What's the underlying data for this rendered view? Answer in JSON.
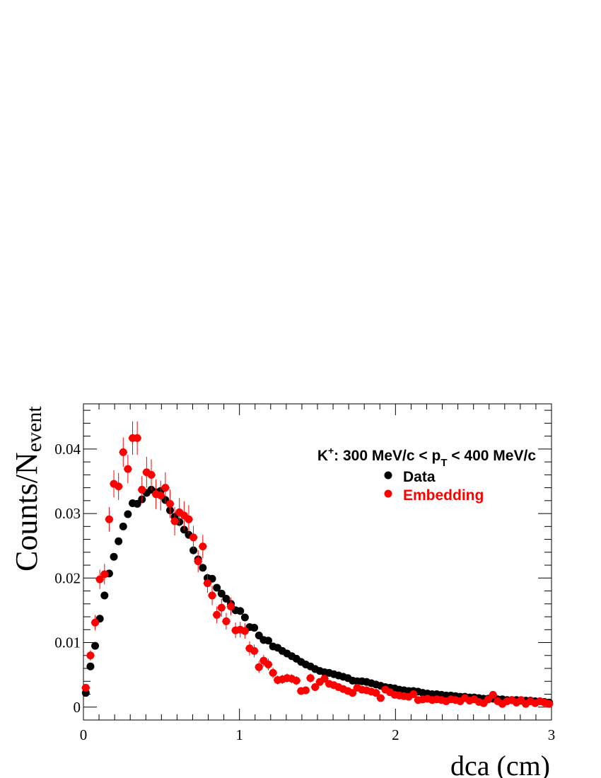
{
  "chart_data": {
    "type": "scatter",
    "xlabel": "dca (cm)",
    "ylabel": {
      "main": "Counts/N",
      "sub": "event"
    },
    "xlim": [
      0,
      3
    ],
    "ylim": [
      -0.002,
      0.047
    ],
    "x_ticks": [
      0,
      1,
      2,
      3
    ],
    "x_tick_labels": [
      "0",
      "1",
      "2",
      "3"
    ],
    "y_ticks": [
      0,
      0.01,
      0.02,
      0.03,
      0.04
    ],
    "y_tick_labels": [
      "0",
      "0.01",
      "0.02",
      "0.03",
      "0.04"
    ],
    "grid": false,
    "legend_position": "top-right",
    "annotation": {
      "particle": "K",
      "charge": "+",
      "text_a": ": 300 MeV/c < p",
      "subscript": "T",
      "text_b": " < 400 MeV/c"
    },
    "series": [
      {
        "name": "Data",
        "color": "#000000",
        "x": [
          0.015,
          0.045,
          0.075,
          0.105,
          0.135,
          0.165,
          0.195,
          0.225,
          0.255,
          0.285,
          0.315,
          0.345,
          0.375,
          0.405,
          0.435,
          0.465,
          0.495,
          0.525,
          0.555,
          0.585,
          0.615,
          0.645,
          0.675,
          0.705,
          0.735,
          0.765,
          0.795,
          0.825,
          0.855,
          0.885,
          0.915,
          0.945,
          0.975,
          1.005,
          1.035,
          1.065,
          1.095,
          1.125,
          1.155,
          1.185,
          1.215,
          1.245,
          1.275,
          1.305,
          1.335,
          1.365,
          1.395,
          1.425,
          1.455,
          1.485,
          1.515,
          1.545,
          1.575,
          1.605,
          1.635,
          1.665,
          1.695,
          1.725,
          1.755,
          1.785,
          1.815,
          1.845,
          1.875,
          1.905,
          1.935,
          1.965,
          1.995,
          2.025,
          2.055,
          2.085,
          2.115,
          2.145,
          2.175,
          2.205,
          2.235,
          2.265,
          2.295,
          2.325,
          2.355,
          2.385,
          2.415,
          2.445,
          2.475,
          2.505,
          2.535,
          2.565,
          2.595,
          2.625,
          2.655,
          2.685,
          2.715,
          2.745,
          2.775,
          2.805,
          2.835,
          2.865,
          2.895,
          2.925,
          2.955,
          2.985
        ],
        "y": [
          0.0022,
          0.0063,
          0.0095,
          0.0137,
          0.0173,
          0.0207,
          0.0233,
          0.0257,
          0.028,
          0.0299,
          0.0316,
          0.0315,
          0.0322,
          0.0332,
          0.0337,
          0.0333,
          0.0335,
          0.0321,
          0.0305,
          0.0295,
          0.0287,
          0.0275,
          0.0267,
          0.0243,
          0.0229,
          0.0216,
          0.02,
          0.0199,
          0.0185,
          0.0176,
          0.0168,
          0.016,
          0.015,
          0.0149,
          0.0139,
          0.0124,
          0.0123,
          0.0111,
          0.0104,
          0.0103,
          0.0094,
          0.0092,
          0.0087,
          0.0083,
          0.0079,
          0.0075,
          0.007,
          0.0066,
          0.0063,
          0.0059,
          0.0056,
          0.0054,
          0.0053,
          0.0051,
          0.0049,
          0.0047,
          0.0045,
          0.0041,
          0.004,
          0.004,
          0.0039,
          0.0037,
          0.0035,
          0.0033,
          0.0031,
          0.003,
          0.0029,
          0.0027,
          0.0026,
          0.0025,
          0.0025,
          0.0024,
          0.0022,
          0.0021,
          0.002,
          0.002,
          0.0019,
          0.0018,
          0.0018,
          0.0017,
          0.0016,
          0.0016,
          0.0015,
          0.0015,
          0.0014,
          0.0013,
          0.0013,
          0.0013,
          0.0012,
          0.0012,
          0.0011,
          0.0011,
          0.0011,
          0.001,
          0.001,
          0.001,
          0.0009,
          0.0009,
          0.0008,
          0.0007
        ]
      },
      {
        "name": "Embedding",
        "color": "#ff0000",
        "x": [
          0.015,
          0.045,
          0.075,
          0.105,
          0.135,
          0.165,
          0.195,
          0.225,
          0.255,
          0.285,
          0.315,
          0.345,
          0.375,
          0.405,
          0.435,
          0.465,
          0.495,
          0.525,
          0.555,
          0.585,
          0.615,
          0.645,
          0.675,
          0.705,
          0.735,
          0.765,
          0.795,
          0.825,
          0.855,
          0.885,
          0.915,
          0.945,
          0.975,
          1.005,
          1.035,
          1.065,
          1.095,
          1.125,
          1.155,
          1.185,
          1.215,
          1.245,
          1.275,
          1.305,
          1.335,
          1.365,
          1.395,
          1.425,
          1.455,
          1.485,
          1.515,
          1.545,
          1.575,
          1.605,
          1.635,
          1.665,
          1.695,
          1.725,
          1.755,
          1.785,
          1.815,
          1.845,
          1.875,
          1.905,
          1.935,
          1.965,
          1.995,
          2.025,
          2.055,
          2.085,
          2.115,
          2.145,
          2.175,
          2.205,
          2.235,
          2.265,
          2.295,
          2.325,
          2.355,
          2.385,
          2.415,
          2.445,
          2.475,
          2.505,
          2.535,
          2.565,
          2.595,
          2.625,
          2.655,
          2.685,
          2.715,
          2.745,
          2.775,
          2.805,
          2.835,
          2.865,
          2.895,
          2.925,
          2.955,
          2.985
        ],
        "y": [
          0.003,
          0.008,
          0.0131,
          0.0198,
          0.0206,
          0.0291,
          0.0346,
          0.0342,
          0.0395,
          0.0369,
          0.0417,
          0.0417,
          0.0337,
          0.0364,
          0.036,
          0.033,
          0.0328,
          0.034,
          0.0315,
          0.0288,
          0.0302,
          0.0297,
          0.0291,
          0.0263,
          0.0226,
          0.0249,
          0.0192,
          0.0173,
          0.0143,
          0.0154,
          0.0133,
          0.0156,
          0.0119,
          0.012,
          0.0118,
          0.0091,
          0.0087,
          0.0062,
          0.0072,
          0.0066,
          0.0053,
          0.0042,
          0.0043,
          0.0045,
          0.0044,
          0.0041,
          0.0025,
          0.0026,
          0.0045,
          0.0031,
          0.0039,
          0.0044,
          0.0036,
          0.0034,
          0.0031,
          0.0028,
          0.0025,
          0.0022,
          0.003,
          0.0027,
          0.0026,
          0.0024,
          0.0022,
          0.0014,
          0.0027,
          0.0023,
          0.0019,
          0.0018,
          0.0017,
          0.0016,
          0.002,
          0.0011,
          0.0012,
          0.0013,
          0.0011,
          0.0012,
          0.0011,
          0.0009,
          0.0012,
          0.0011,
          0.0009,
          0.0014,
          0.001,
          0.0012,
          0.0008,
          0.0006,
          0.0012,
          0.0019,
          0.0009,
          0.0005,
          0.0009,
          0.0011,
          0.0007,
          0.0011,
          0.0005,
          0.0009,
          0.0006,
          0.0009,
          0.0007,
          0.0005
        ],
        "err": [
          0.0005,
          0.0008,
          0.0012,
          0.0015,
          0.0016,
          0.0019,
          0.0021,
          0.0021,
          0.0023,
          0.0022,
          0.0026,
          0.0026,
          0.0021,
          0.0024,
          0.0024,
          0.0023,
          0.0023,
          0.0024,
          0.0022,
          0.0022,
          0.0022,
          0.0022,
          0.0022,
          0.0018,
          0.0017,
          0.0018,
          0.0015,
          0.0015,
          0.0013,
          0.0014,
          0.0013,
          0.0014,
          0.0012,
          0.0012,
          0.0012,
          0.0011,
          0.001,
          0.0009,
          0.0009,
          0.0009,
          0.0008,
          0.0007,
          0.0007,
          0.0007,
          0.0007,
          0.0007,
          0.0006,
          0.0006,
          0.0007,
          0.0006,
          0.0006,
          0.0006,
          0.0006,
          0.0006,
          0.0006,
          0.0005,
          0.0005,
          0.0005,
          0.0006,
          0.0005,
          0.0005,
          0.0005,
          0.0005,
          0.0004,
          0.0005,
          0.0005,
          0.0004,
          0.0004,
          0.0004,
          0.0004,
          0.0004,
          0.0003,
          0.0003,
          0.0004,
          0.0003,
          0.0003,
          0.0003,
          0.0003,
          0.0003,
          0.0003,
          0.0003,
          0.0004,
          0.0003,
          0.0003,
          0.0003,
          0.0003,
          0.0003,
          0.0004,
          0.0003,
          0.0002,
          0.0003,
          0.0003,
          0.0003,
          0.0003,
          0.0002,
          0.0003,
          0.0002,
          0.0003,
          0.0002,
          0.0002
        ]
      }
    ]
  }
}
